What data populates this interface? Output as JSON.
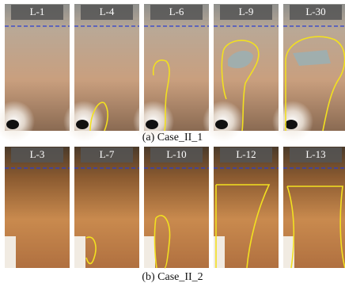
{
  "rows": [
    {
      "panels": [
        "L-1",
        "L-4",
        "L-6",
        "L-9",
        "L-30"
      ],
      "caption": "(a) Case_II_1"
    },
    {
      "panels": [
        "L-3",
        "L-7",
        "L-10",
        "L-12",
        "L-13"
      ],
      "caption": "(b) Case_II_2"
    }
  ]
}
